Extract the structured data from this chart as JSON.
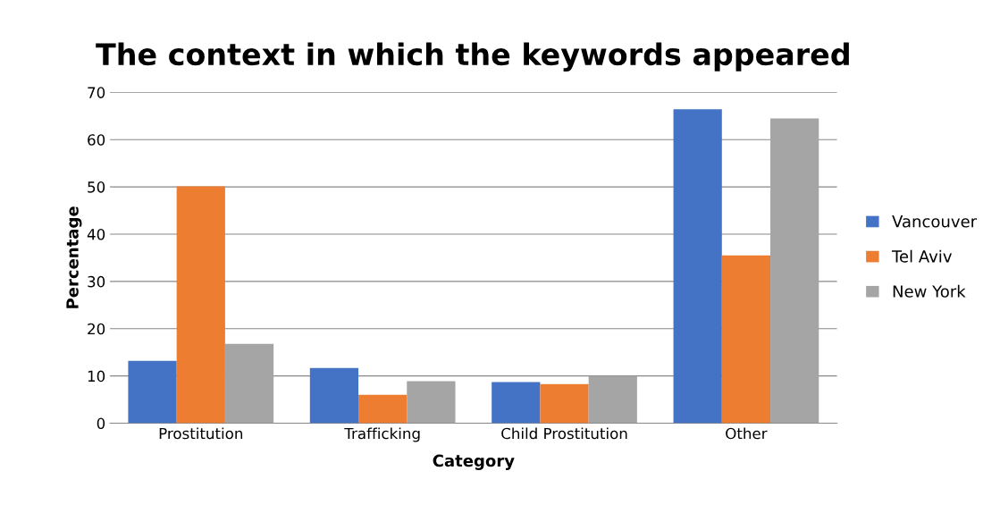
{
  "chart_data": {
    "type": "bar",
    "title": "The context in which the keywords appeared",
    "xlabel": "Category",
    "ylabel": "Percentage",
    "categories": [
      "Prostitution",
      "Trafficking",
      "Child Prostitution",
      "Other"
    ],
    "series": [
      {
        "name": "Vancouver",
        "color": "#4472c4",
        "values": [
          13.2,
          11.7,
          8.7,
          66.4
        ]
      },
      {
        "name": "Tel Aviv",
        "color": "#ed7d31",
        "values": [
          50.1,
          6.0,
          8.3,
          35.5
        ]
      },
      {
        "name": "New York",
        "color": "#a5a5a5",
        "values": [
          16.8,
          8.9,
          10.0,
          64.5
        ]
      }
    ],
    "ylim": [
      0,
      70
    ],
    "yticks": [
      0,
      10,
      20,
      30,
      40,
      50,
      60,
      70
    ],
    "grid": "y",
    "legend": "right"
  }
}
